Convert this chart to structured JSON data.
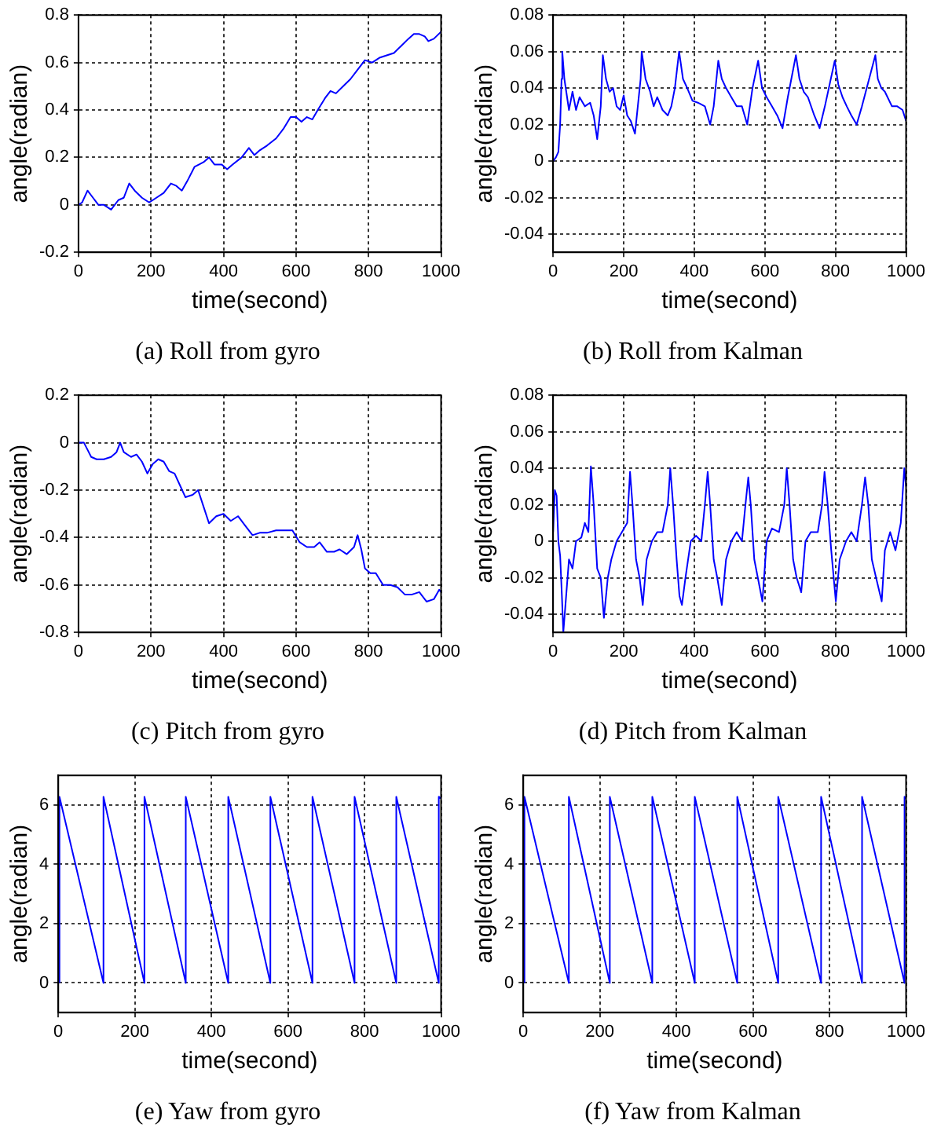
{
  "chart_data": [
    {
      "type": "line",
      "title": "(a) Roll from gyro",
      "xlabel": "time(second)",
      "ylabel": "angle(radian)",
      "xlim": [
        0,
        1000
      ],
      "xticks": [
        0,
        200,
        400,
        600,
        800,
        1000
      ],
      "ylim": [
        -0.2,
        0.8
      ],
      "yticks": [
        -0.2,
        0,
        0.2,
        0.4,
        0.6,
        0.8
      ],
      "grid": true,
      "marker": "none",
      "line_style": "solid",
      "series": [
        {
          "color": "#0000ff",
          "x": [
            0,
            10,
            25,
            40,
            55,
            70,
            90,
            110,
            125,
            140,
            155,
            175,
            195,
            215,
            235,
            255,
            270,
            285,
            300,
            320,
            345,
            360,
            375,
            395,
            410,
            425,
            450,
            470,
            485,
            500,
            520,
            545,
            565,
            585,
            600,
            615,
            630,
            645,
            660,
            680,
            695,
            710,
            730,
            750,
            770,
            790,
            810,
            830,
            850,
            870,
            890,
            910,
            925,
            940,
            955,
            965,
            980,
            1000
          ],
          "values": [
            0,
            0.01,
            0.06,
            0.03,
            0,
            0,
            -0.02,
            0.02,
            0.03,
            0.09,
            0.06,
            0.03,
            0.01,
            0.03,
            0.05,
            0.09,
            0.08,
            0.06,
            0.1,
            0.16,
            0.18,
            0.2,
            0.17,
            0.17,
            0.15,
            0.17,
            0.2,
            0.24,
            0.21,
            0.23,
            0.25,
            0.28,
            0.32,
            0.37,
            0.37,
            0.35,
            0.37,
            0.36,
            0.4,
            0.45,
            0.48,
            0.47,
            0.5,
            0.53,
            0.57,
            0.61,
            0.6,
            0.62,
            0.63,
            0.64,
            0.67,
            0.7,
            0.72,
            0.72,
            0.71,
            0.69,
            0.7,
            0.73
          ]
        }
      ]
    },
    {
      "type": "line",
      "title": "(b) Roll from Kalman",
      "xlabel": "time(second)",
      "ylabel": "angle(radian)",
      "xlim": [
        0,
        1000
      ],
      "xticks": [
        0,
        200,
        400,
        600,
        800,
        1000
      ],
      "ylim": [
        -0.05,
        0.08
      ],
      "yticks": [
        -0.04,
        -0.02,
        0,
        0.02,
        0.04,
        0.06,
        0.08
      ],
      "grid": true,
      "marker": "none",
      "line_style": "solid",
      "series": [
        {
          "color": "#0000ff",
          "x": [
            0,
            8,
            15,
            20,
            24,
            26,
            32,
            45,
            55,
            65,
            75,
            90,
            105,
            115,
            125,
            135,
            141,
            150,
            160,
            170,
            180,
            190,
            200,
            210,
            220,
            232,
            240,
            248,
            251,
            262,
            275,
            285,
            295,
            310,
            325,
            335,
            345,
            357,
            368,
            380,
            395,
            410,
            430,
            445,
            455,
            468,
            478,
            490,
            505,
            520,
            535,
            550,
            565,
            581,
            592,
            605,
            620,
            635,
            650,
            665,
            688,
            698,
            710,
            722,
            740,
            755,
            770,
            798,
            808,
            820,
            832,
            845,
            860,
            875,
            913,
            920,
            930,
            940,
            960,
            975,
            990,
            1000
          ],
          "values": [
            0,
            0.002,
            0.005,
            0.02,
            0.045,
            0.06,
            0.045,
            0.028,
            0.038,
            0.028,
            0.035,
            0.03,
            0.032,
            0.025,
            0.012,
            0.03,
            0.058,
            0.045,
            0.038,
            0.04,
            0.03,
            0.028,
            0.036,
            0.025,
            0.022,
            0.015,
            0.03,
            0.045,
            0.06,
            0.045,
            0.038,
            0.03,
            0.035,
            0.028,
            0.025,
            0.03,
            0.04,
            0.06,
            0.045,
            0.04,
            0.033,
            0.032,
            0.03,
            0.02,
            0.03,
            0.055,
            0.045,
            0.04,
            0.035,
            0.03,
            0.03,
            0.02,
            0.04,
            0.055,
            0.04,
            0.035,
            0.03,
            0.025,
            0.018,
            0.035,
            0.058,
            0.045,
            0.038,
            0.035,
            0.025,
            0.018,
            0.03,
            0.055,
            0.042,
            0.035,
            0.03,
            0.025,
            0.02,
            0.03,
            0.058,
            0.045,
            0.04,
            0.038,
            0.03,
            0.03,
            0.028,
            0.022
          ]
        }
      ]
    },
    {
      "type": "line",
      "title": "(c) Pitch from gyro",
      "xlabel": "time(second)",
      "ylabel": "angle(radian)",
      "xlim": [
        0,
        1000
      ],
      "xticks": [
        0,
        200,
        400,
        600,
        800,
        1000
      ],
      "ylim": [
        -0.8,
        0.2
      ],
      "yticks": [
        -0.8,
        -0.6,
        -0.4,
        -0.2,
        0,
        0.2
      ],
      "grid": true,
      "marker": "none",
      "line_style": "solid",
      "series": [
        {
          "color": "#0000ff",
          "x": [
            0,
            15,
            25,
            35,
            50,
            70,
            90,
            105,
            115,
            125,
            145,
            160,
            175,
            190,
            205,
            220,
            235,
            250,
            265,
            280,
            295,
            315,
            330,
            345,
            360,
            380,
            400,
            420,
            440,
            460,
            480,
            500,
            520,
            545,
            570,
            590,
            610,
            630,
            650,
            665,
            685,
            705,
            720,
            740,
            760,
            770,
            780,
            790,
            805,
            820,
            840,
            860,
            880,
            900,
            920,
            940,
            960,
            980,
            995,
            1000
          ],
          "values": [
            0,
            0,
            -0.03,
            -0.06,
            -0.07,
            -0.07,
            -0.06,
            -0.04,
            0,
            -0.04,
            -0.06,
            -0.05,
            -0.08,
            -0.13,
            -0.09,
            -0.07,
            -0.08,
            -0.12,
            -0.13,
            -0.18,
            -0.23,
            -0.22,
            -0.2,
            -0.27,
            -0.34,
            -0.31,
            -0.3,
            -0.33,
            -0.31,
            -0.35,
            -0.39,
            -0.38,
            -0.38,
            -0.37,
            -0.37,
            -0.37,
            -0.42,
            -0.44,
            -0.44,
            -0.42,
            -0.46,
            -0.46,
            -0.45,
            -0.47,
            -0.44,
            -0.39,
            -0.45,
            -0.53,
            -0.55,
            -0.55,
            -0.6,
            -0.6,
            -0.61,
            -0.64,
            -0.64,
            -0.63,
            -0.67,
            -0.66,
            -0.62,
            -0.63
          ]
        }
      ]
    },
    {
      "type": "line",
      "title": "(d) Pitch from Kalman",
      "xlabel": "time(second)",
      "ylabel": "angle(radian)",
      "xlim": [
        0,
        1000
      ],
      "xticks": [
        0,
        200,
        400,
        600,
        800,
        1000
      ],
      "ylim": [
        -0.05,
        0.08
      ],
      "yticks": [
        -0.04,
        -0.02,
        0,
        0.02,
        0.04,
        0.06,
        0.08
      ],
      "grid": true,
      "marker": "none",
      "line_style": "solid",
      "series": [
        {
          "color": "#0000ff",
          "x": [
            0,
            5,
            10,
            15,
            20,
            25,
            29,
            35,
            45,
            55,
            65,
            80,
            90,
            100,
            107,
            115,
            125,
            135,
            144,
            155,
            165,
            180,
            195,
            210,
            218,
            225,
            235,
            245,
            254,
            265,
            280,
            295,
            310,
            325,
            332,
            340,
            350,
            358,
            365,
            375,
            390,
            405,
            420,
            430,
            438,
            445,
            455,
            465,
            478,
            490,
            505,
            520,
            535,
            545,
            553,
            560,
            570,
            580,
            593,
            605,
            620,
            640,
            655,
            662,
            670,
            680,
            690,
            703,
            715,
            730,
            750,
            762,
            769,
            778,
            788,
            801,
            812,
            830,
            845,
            860,
            875,
            884,
            893,
            903,
            915,
            931,
            940,
            955,
            970,
            985,
            995,
            1000
          ],
          "values": [
            0.005,
            0.028,
            0.025,
            0,
            -0.008,
            -0.03,
            -0.05,
            -0.035,
            -0.01,
            -0.015,
            0,
            0.002,
            0.01,
            0.005,
            0.041,
            0.02,
            -0.015,
            -0.02,
            -0.042,
            -0.02,
            -0.01,
            0,
            0.005,
            0.01,
            0.038,
            0.02,
            -0.01,
            -0.02,
            -0.035,
            -0.01,
            0,
            0.005,
            0.005,
            0.02,
            0.04,
            0.02,
            -0.01,
            -0.03,
            -0.035,
            -0.02,
            0,
            0.003,
            0,
            0.02,
            0.038,
            0.02,
            -0.01,
            -0.02,
            -0.035,
            -0.01,
            0,
            0.005,
            0,
            0.02,
            0.035,
            0.02,
            -0.01,
            -0.02,
            -0.033,
            0,
            0.007,
            0.005,
            0.02,
            0.04,
            0.02,
            -0.01,
            -0.02,
            -0.028,
            0,
            0.005,
            0.005,
            0.02,
            0.038,
            0.02,
            -0.005,
            -0.033,
            -0.01,
            0,
            0.005,
            0,
            0.02,
            0.035,
            0.02,
            -0.01,
            -0.02,
            -0.033,
            -0.005,
            0.005,
            -0.005,
            0.01,
            0.04,
            0.03
          ]
        }
      ]
    },
    {
      "type": "line",
      "title": "(e) Yaw from gyro",
      "xlabel": "time(second)",
      "ylabel": "angle(radian)",
      "xlim": [
        0,
        1000
      ],
      "xticks": [
        0,
        200,
        400,
        600,
        800,
        1000
      ],
      "ylim": [
        -1,
        7
      ],
      "yticks": [
        0,
        2,
        4,
        6
      ],
      "grid": true,
      "marker": "none",
      "line_style": "solid",
      "series": [
        {
          "color": "#0000ff",
          "x": [
            3,
            3,
            118,
            118,
            225,
            225,
            333,
            333,
            444,
            444,
            554,
            554,
            664,
            664,
            774,
            774,
            883,
            883,
            994,
            994,
            1000
          ],
          "values": [
            0,
            6.28,
            0,
            6.28,
            0,
            6.28,
            0,
            6.28,
            0,
            6.28,
            0,
            6.28,
            0,
            6.28,
            0,
            6.28,
            0,
            6.28,
            0,
            6.28,
            6.23
          ]
        }
      ]
    },
    {
      "type": "line",
      "title": "(f) Yaw from Kalman",
      "xlabel": "time(second)",
      "ylabel": "angle(radian)",
      "xlim": [
        0,
        1000
      ],
      "xticks": [
        0,
        200,
        400,
        600,
        800,
        1000
      ],
      "ylim": [
        -1,
        7
      ],
      "yticks": [
        0,
        2,
        4,
        6
      ],
      "grid": true,
      "marker": "none",
      "line_style": "solid",
      "series": [
        {
          "color": "#0000ff",
          "x": [
            3,
            3,
            119,
            119,
            226,
            226,
            337,
            337,
            448,
            448,
            559,
            559,
            666,
            666,
            778,
            778,
            885,
            885,
            996,
            996,
            1000
          ],
          "values": [
            0,
            6.28,
            0,
            6.28,
            0,
            6.28,
            0,
            6.28,
            0,
            6.28,
            0,
            6.28,
            0,
            6.28,
            0,
            6.28,
            0,
            6.28,
            0,
            6.28,
            6.23
          ]
        }
      ]
    }
  ]
}
